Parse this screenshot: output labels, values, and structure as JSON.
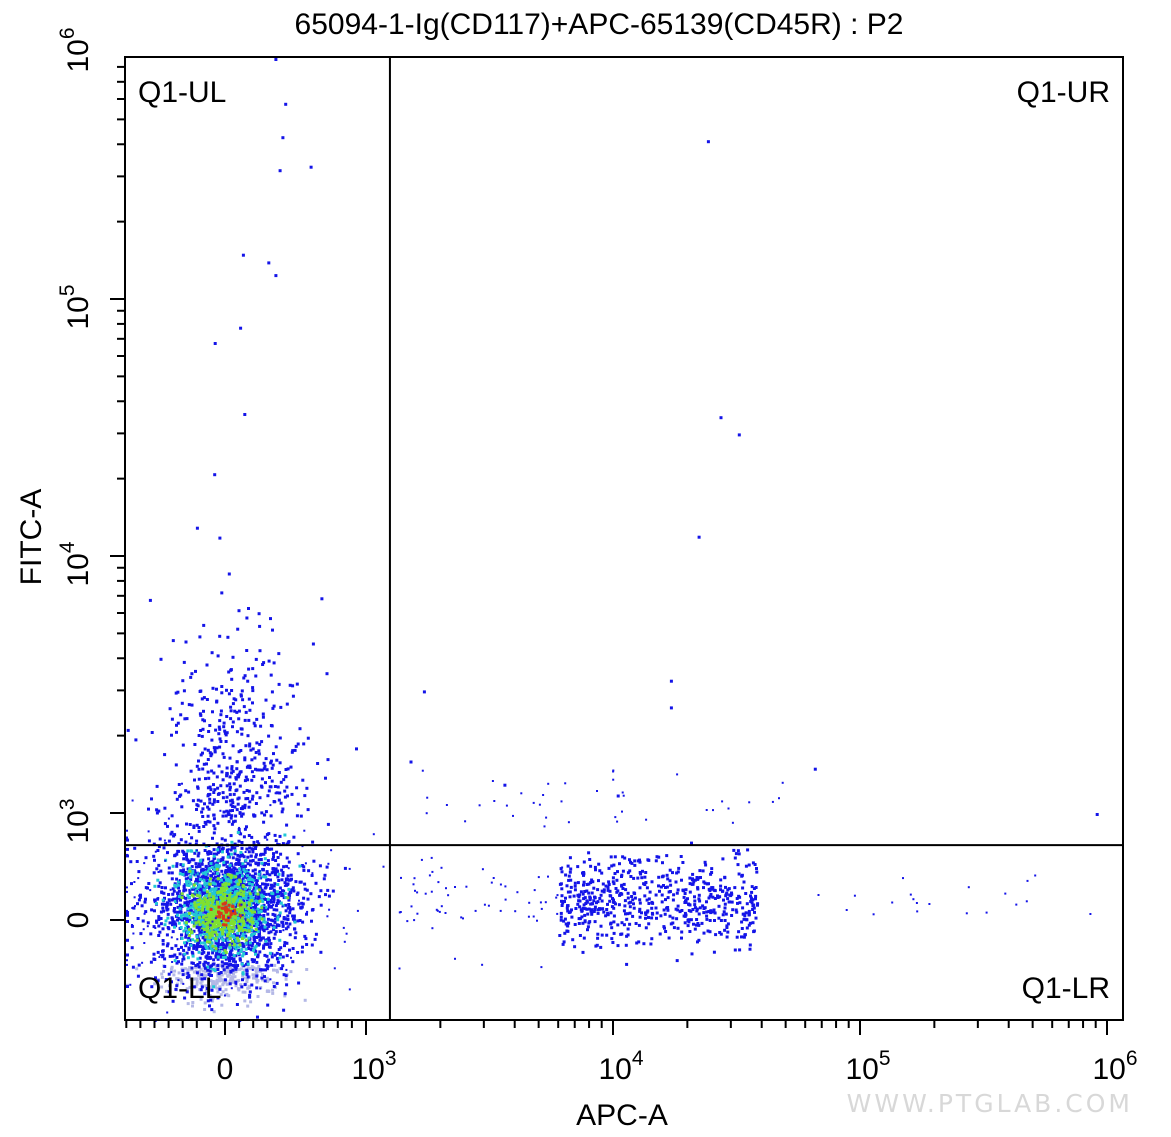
{
  "chart_data": {
    "type": "scatter",
    "title": "65094-1-Ig(CD117)+APC-65139(CD45R) : P2",
    "xlabel": "APC-A",
    "ylabel": "FITC-A",
    "x_scale": "biexponential",
    "y_scale": "biexponential",
    "xlim": [
      -400,
      1000000
    ],
    "ylim": [
      -500,
      1000000
    ],
    "x_ticks": [
      {
        "value": 0,
        "base": "0",
        "exp": ""
      },
      {
        "value": 1000,
        "base": "10",
        "exp": "3"
      },
      {
        "value": 10000,
        "base": "10",
        "exp": "4"
      },
      {
        "value": 100000,
        "base": "10",
        "exp": "5"
      },
      {
        "value": 1000000,
        "base": "10",
        "exp": "6"
      }
    ],
    "y_ticks": [
      {
        "value": 0,
        "base": "0",
        "exp": ""
      },
      {
        "value": 1000,
        "base": "10",
        "exp": "3"
      },
      {
        "value": 10000,
        "base": "10",
        "exp": "4"
      },
      {
        "value": 100000,
        "base": "10",
        "exp": "5"
      },
      {
        "value": 1000000,
        "base": "10",
        "exp": "6"
      }
    ],
    "gates": {
      "x_threshold": 1250,
      "y_threshold": 700
    },
    "quadrants": [
      {
        "name": "Q1-UL",
        "position": "top-left"
      },
      {
        "name": "Q1-UR",
        "position": "top-right"
      },
      {
        "name": "Q1-LL",
        "position": "bottom-left"
      },
      {
        "name": "Q1-LR",
        "position": "bottom-right"
      }
    ],
    "populations": [
      {
        "name": "main cluster",
        "x_center": 50,
        "y_center": 40,
        "density": "high"
      },
      {
        "name": "APC-positive cluster",
        "x_range": [
          5000,
          40000
        ],
        "y_center": 50,
        "density": "low"
      }
    ],
    "outliers": [
      [
        350,
        870000
      ],
      [
        420,
        580000
      ],
      [
        400,
        430000
      ],
      [
        380,
        320000
      ],
      [
        600,
        330000
      ],
      [
        120,
        150000
      ],
      [
        300,
        140000
      ],
      [
        350,
        125000
      ],
      [
        100,
        78000
      ],
      [
        -80,
        68000
      ],
      [
        130,
        36000
      ],
      [
        24000,
        415000
      ],
      [
        27000,
        35000
      ],
      [
        32000,
        30000
      ],
      [
        22000,
        12000
      ],
      [
        17000,
        3300
      ],
      [
        17000,
        2600
      ],
      [
        1700,
        3000
      ],
      [
        3600,
        1300
      ],
      [
        1500,
        1600
      ],
      [
        65000,
        1500
      ],
      [
        900000,
        1000
      ]
    ],
    "colors": {
      "density_low": "#1414e8",
      "density_mid": "#22c7d6",
      "density_high": "#7fe030",
      "density_peak": "#d63a1a",
      "negative_region": "#b4b8e6"
    }
  },
  "watermark": "WWW.PTGLAB.COM"
}
